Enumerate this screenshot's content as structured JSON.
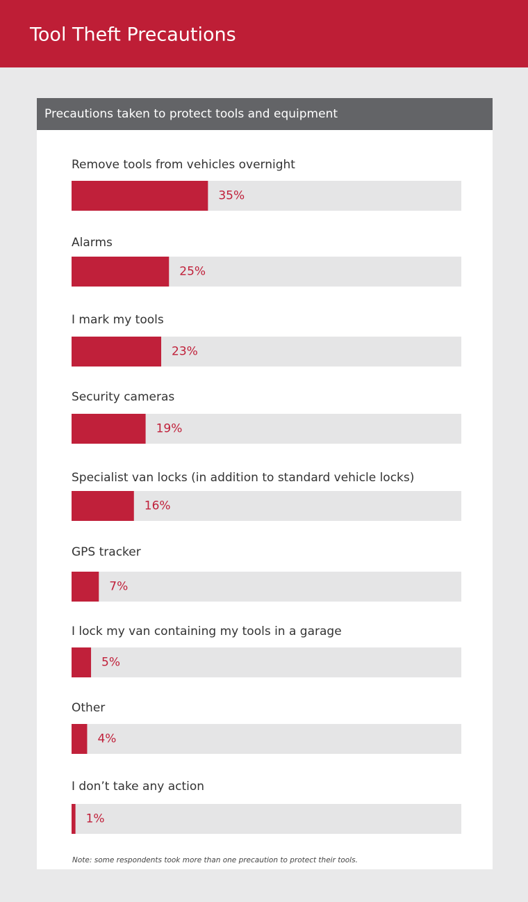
{
  "chart_data": {
    "type": "bar",
    "title": "Tool Theft Precautions",
    "subtitle": "Precautions taken to protect tools and equipment",
    "categories": [
      "Remove tools from vehicles overnight",
      "Alarms",
      "I mark my tools",
      "Security cameras",
      "Specialist van locks (in addition to standard vehicle locks)",
      "GPS tracker",
      "I lock my van containing my tools in a garage",
      "Other",
      "I don’t take any action"
    ],
    "values": [
      35,
      25,
      23,
      19,
      16,
      7,
      5,
      4,
      1
    ],
    "value_labels": [
      "35%",
      "25%",
      "23%",
      "19%",
      "16%",
      "7%",
      "5%",
      "4%",
      "1%"
    ],
    "color": "#c0203a",
    "track_color": "#e5e5e6",
    "xlim": [
      0,
      100
    ],
    "note": "Note: some respondents took more than one precaution to protect their tools."
  }
}
